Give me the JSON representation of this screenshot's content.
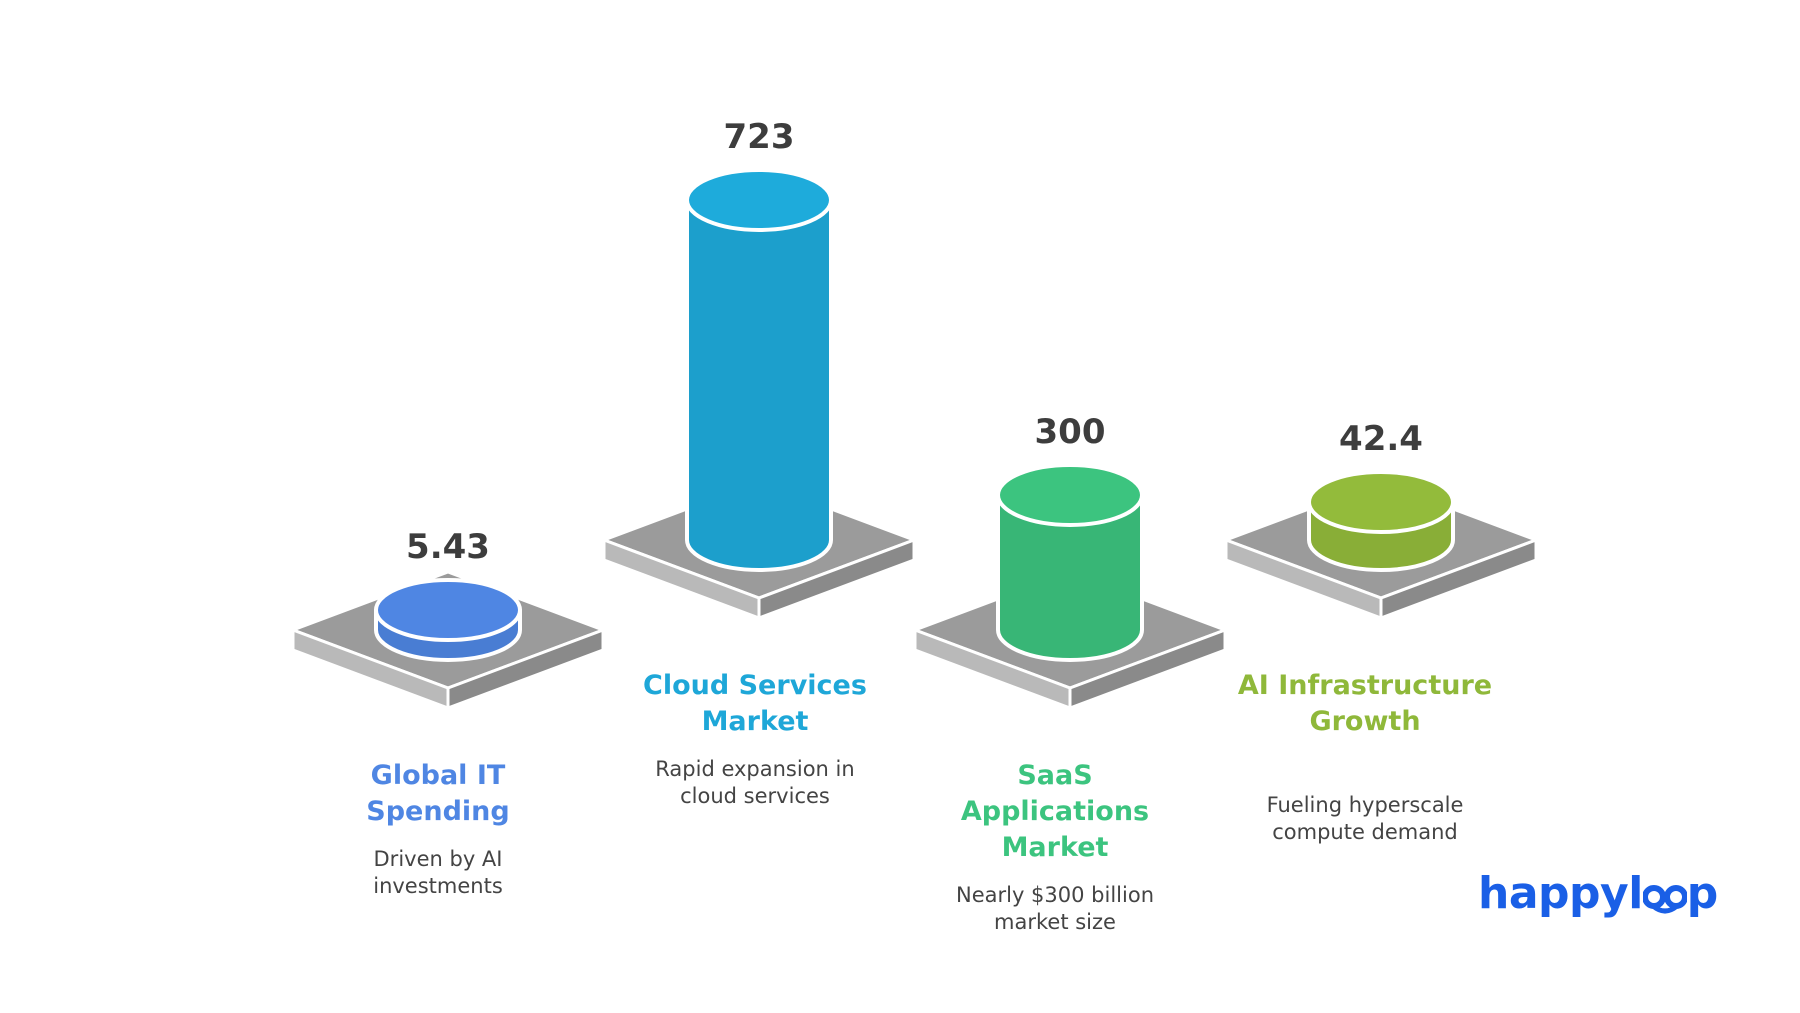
{
  "chart_data": {
    "type": "bar",
    "categories": [
      "Global IT Spending",
      "Cloud Services Market",
      "SaaS Applications Market",
      "AI Infrastructure Growth"
    ],
    "values": [
      5.43,
      723,
      300,
      42.4
    ],
    "value_labels": [
      "5.43",
      "723",
      "300",
      "42.4"
    ],
    "descriptions": [
      "Driven by AI investments",
      "Rapid expansion in cloud services",
      "Nearly $300 billion market size",
      "Fueling hyperscale compute demand"
    ],
    "colors": [
      "#4f86e3",
      "#1eabdb",
      "#3cc47f",
      "#93bb3b"
    ],
    "label_colors": [
      "#4f86e3",
      "#1ea7d8",
      "#3cc47f",
      "#8fb83a"
    ],
    "grid": false,
    "legend": "none"
  },
  "brand": {
    "name": "happyloop",
    "text_before": "happyl",
    "text_after": "p",
    "color": "#1a5fe6"
  }
}
